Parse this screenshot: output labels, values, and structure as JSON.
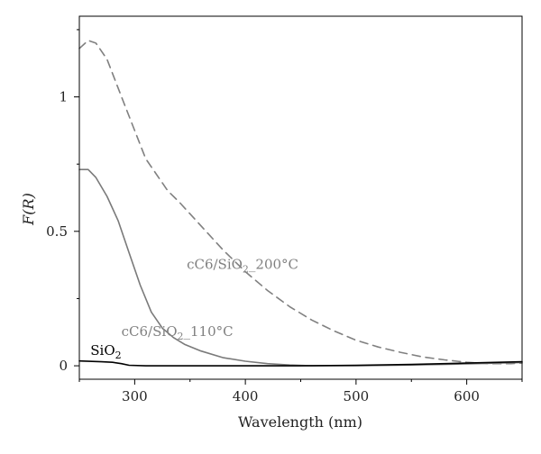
{
  "chart_data": {
    "type": "line",
    "title": "",
    "xlabel": "Wavelength (nm)",
    "ylabel": "F(R)",
    "xlim": [
      250,
      650
    ],
    "ylim": [
      -0.05,
      1.3
    ],
    "x_ticks": [
      300,
      400,
      500,
      600
    ],
    "y_ticks": [
      0,
      0.5,
      1
    ],
    "x_tick_labels": [
      "300",
      "400",
      "500",
      "600"
    ],
    "y_tick_labels": [
      "0",
      "0.5",
      "1"
    ],
    "grid": false,
    "series": [
      {
        "name": "cC6/SiO2_200°C",
        "label_main": "cC6/SiO",
        "label_sub": "2",
        "label_tail": "_200°C",
        "color": "#808080",
        "dash": "dashed",
        "x": [
          250,
          258,
          265,
          275,
          290,
          310,
          330,
          340,
          360,
          380,
          400,
          420,
          440,
          460,
          480,
          500,
          520,
          540,
          560,
          580,
          600,
          620,
          640,
          650
        ],
        "y": [
          1.18,
          1.21,
          1.2,
          1.14,
          0.98,
          0.77,
          0.65,
          0.61,
          0.52,
          0.43,
          0.35,
          0.28,
          0.22,
          0.17,
          0.13,
          0.095,
          0.07,
          0.05,
          0.033,
          0.022,
          0.013,
          0.008,
          0.008,
          0.01
        ]
      },
      {
        "name": "cC6/SiO2_110°C",
        "label_main": "cC6/SiO",
        "label_sub": "2",
        "label_tail": "_110°C",
        "color": "#7a7a7a",
        "dash": "solid",
        "x": [
          250,
          258,
          265,
          275,
          285,
          295,
          305,
          315,
          325,
          335,
          345,
          360,
          380,
          400,
          420,
          440,
          460,
          480,
          500,
          550,
          600,
          650
        ],
        "y": [
          0.73,
          0.73,
          0.7,
          0.63,
          0.54,
          0.42,
          0.3,
          0.2,
          0.14,
          0.105,
          0.08,
          0.055,
          0.03,
          0.017,
          0.008,
          0.003,
          0.0,
          0.0,
          0.0,
          0.003,
          0.007,
          0.012
        ]
      },
      {
        "name": "SiO2",
        "label_main": "SiO",
        "label_sub": "2",
        "label_tail": "",
        "color": "#000000",
        "dash": "solid",
        "x": [
          250,
          270,
          280,
          288,
          295,
          310,
          350,
          400,
          450,
          500,
          550,
          600,
          650
        ],
        "y": [
          0.018,
          0.015,
          0.013,
          0.008,
          0.002,
          0.0,
          0.0,
          0.0,
          0.0,
          0.002,
          0.005,
          0.01,
          0.015
        ]
      }
    ]
  }
}
